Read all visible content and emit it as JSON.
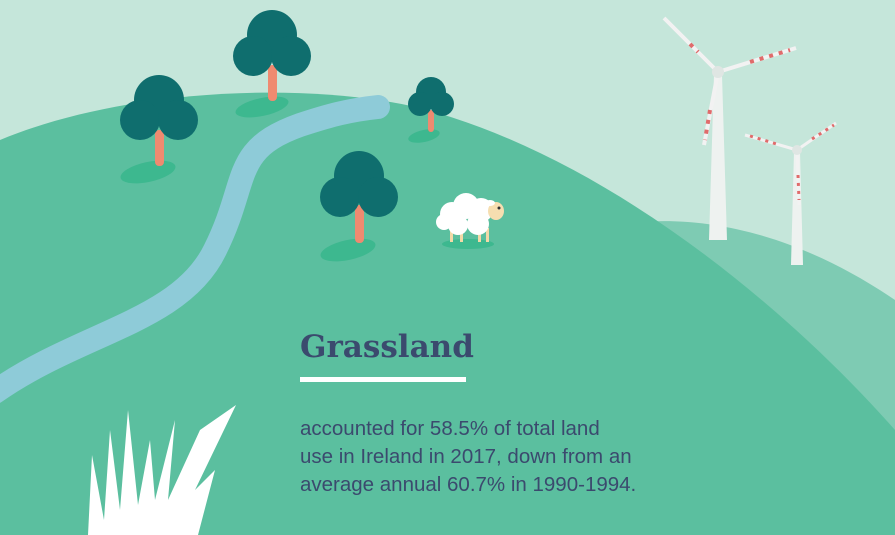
{
  "title": "Grassland",
  "body": [
    "accounted for 58.5% of total land",
    "use in Ireland in 2017, down from an",
    "average annual 60.7% in 1990-1994."
  ]
}
